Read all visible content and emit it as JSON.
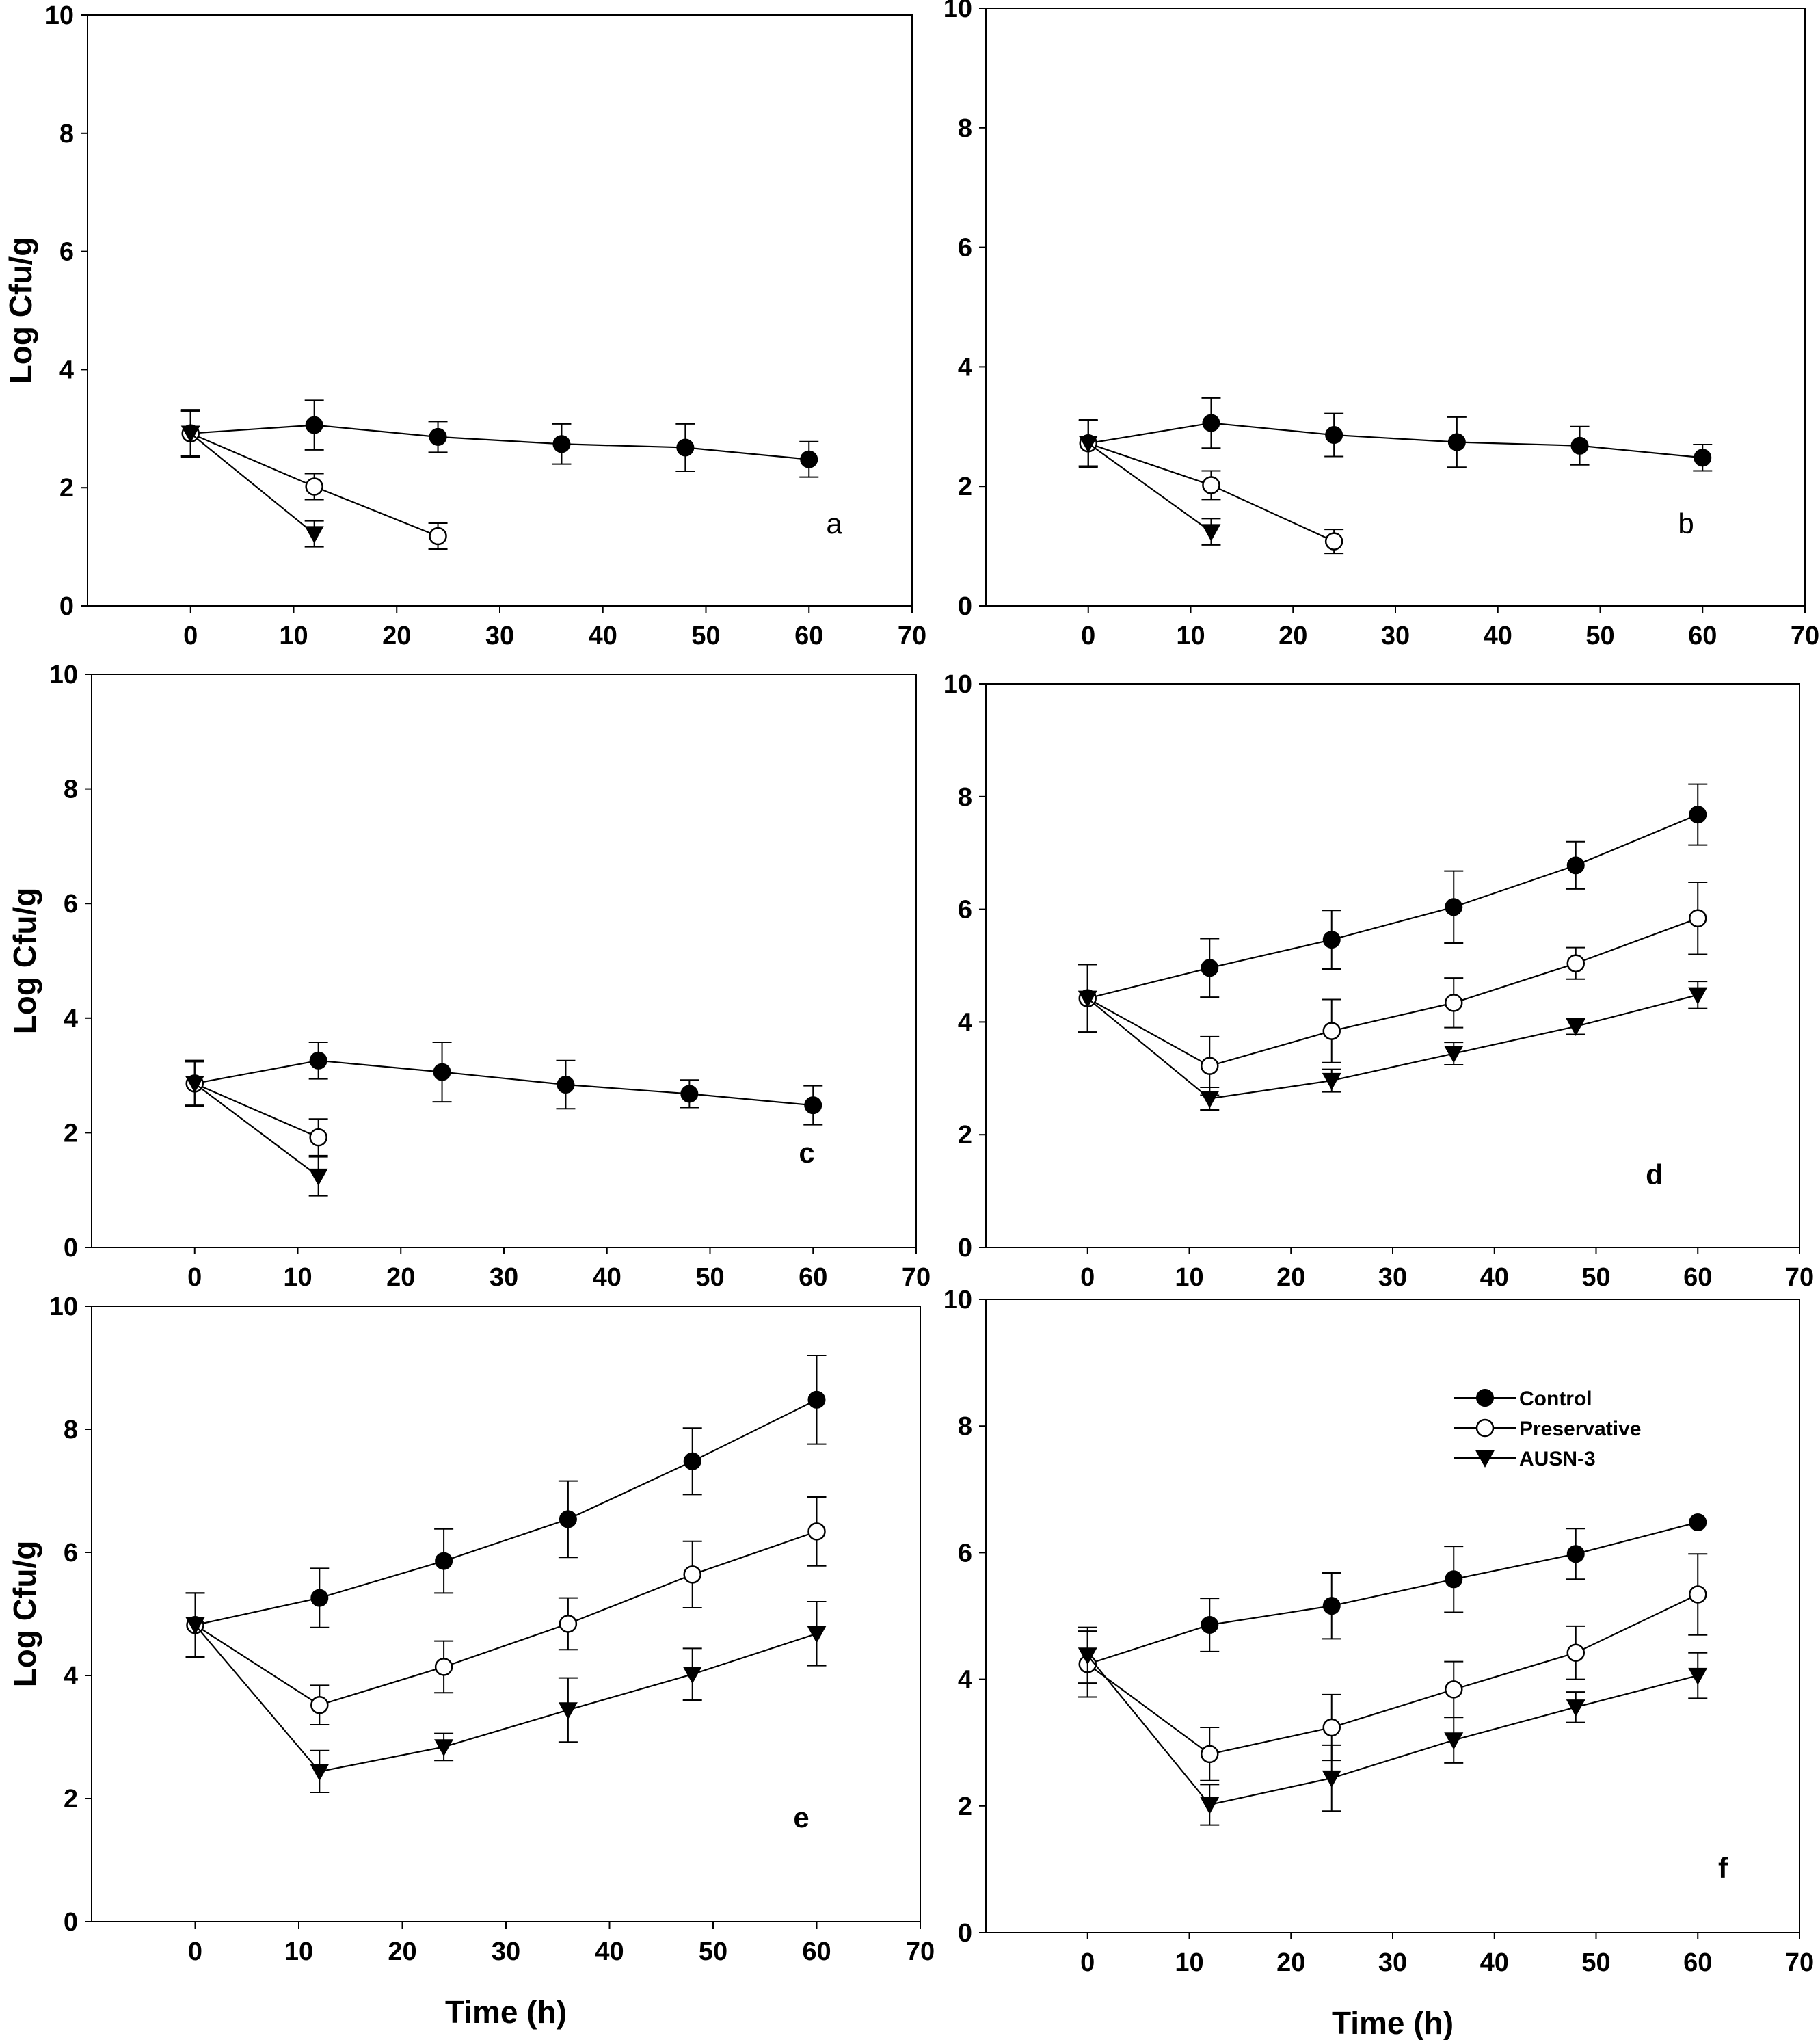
{
  "chart_data": [
    {
      "type": "line",
      "panel_label": "a",
      "ylabel": "Log Cfu/g",
      "xlabel": "",
      "xlim": [
        -10,
        70
      ],
      "ylim": [
        0,
        10
      ],
      "xticks": [
        "0",
        "10",
        "20",
        "30",
        "40",
        "50",
        "60",
        "70"
      ],
      "yticks": [
        "0",
        "2",
        "4",
        "6",
        "8",
        "10"
      ],
      "series": [
        {
          "key": "control",
          "x": [
            0,
            12,
            24,
            36,
            48,
            60
          ],
          "y": [
            2.92,
            3.06,
            2.86,
            2.74,
            2.68,
            2.48
          ],
          "err": [
            0.38,
            0.42,
            0.26,
            0.34,
            0.4,
            0.3
          ]
        },
        {
          "key": "preservative",
          "x": [
            0,
            12,
            24
          ],
          "y": [
            2.92,
            2.02,
            1.18
          ],
          "err": [
            0.38,
            0.22,
            0.22
          ]
        },
        {
          "key": "ausn3",
          "x": [
            0,
            12
          ],
          "y": [
            2.92,
            1.22
          ],
          "err": [
            0.4,
            0.22
          ]
        }
      ]
    },
    {
      "type": "line",
      "panel_label": "b",
      "ylabel": "",
      "xlabel": "",
      "xlim": [
        -10,
        70
      ],
      "ylim": [
        0,
        10
      ],
      "xticks": [
        "0",
        "10",
        "20",
        "30",
        "40",
        "50",
        "60",
        "70"
      ],
      "yticks": [
        "0",
        "2",
        "4",
        "6",
        "8",
        "10"
      ],
      "series": [
        {
          "key": "control",
          "x": [
            0,
            12,
            24,
            36,
            48,
            60
          ],
          "y": [
            2.72,
            3.06,
            2.86,
            2.74,
            2.68,
            2.48
          ],
          "err": [
            0.38,
            0.42,
            0.36,
            0.42,
            0.32,
            0.22
          ]
        },
        {
          "key": "preservative",
          "x": [
            0,
            12,
            24
          ],
          "y": [
            2.72,
            2.02,
            1.08
          ],
          "err": [
            0.38,
            0.24,
            0.2
          ]
        },
        {
          "key": "ausn3",
          "x": [
            0,
            12
          ],
          "y": [
            2.72,
            1.24
          ],
          "err": [
            0.4,
            0.22
          ]
        }
      ]
    },
    {
      "type": "line",
      "panel_label": "c",
      "ylabel": "Log Cfu/g",
      "xlabel": "",
      "xlim": [
        -10,
        70
      ],
      "ylim": [
        0,
        10
      ],
      "xticks": [
        "0",
        "10",
        "20",
        "30",
        "40",
        "50",
        "60",
        "70"
      ],
      "yticks": [
        "0",
        "2",
        "4",
        "6",
        "8",
        "10"
      ],
      "series": [
        {
          "key": "control",
          "x": [
            0,
            12,
            24,
            36,
            48,
            60
          ],
          "y": [
            2.86,
            3.26,
            3.06,
            2.84,
            2.68,
            2.48
          ],
          "err": [
            0.4,
            0.32,
            0.52,
            0.42,
            0.24,
            0.34
          ]
        },
        {
          "key": "preservative",
          "x": [
            0,
            12
          ],
          "y": [
            2.86,
            1.92
          ],
          "err": [
            0.38,
            0.32
          ]
        },
        {
          "key": "ausn3",
          "x": [
            0,
            12
          ],
          "y": [
            2.86,
            1.24
          ],
          "err": [
            0.4,
            0.34
          ]
        }
      ]
    },
    {
      "type": "line",
      "panel_label": "d",
      "ylabel": "",
      "xlabel": "",
      "xlim": [
        -10,
        70
      ],
      "ylim": [
        0,
        10
      ],
      "xticks": [
        "0",
        "10",
        "20",
        "30",
        "40",
        "50",
        "60",
        "70"
      ],
      "yticks": [
        "0",
        "2",
        "4",
        "6",
        "8",
        "10"
      ],
      "series": [
        {
          "key": "control",
          "x": [
            0,
            12,
            24,
            36,
            48,
            60
          ],
          "y": [
            4.42,
            4.96,
            5.46,
            6.04,
            6.78,
            7.68
          ],
          "err": [
            0.6,
            0.52,
            0.52,
            0.64,
            0.42,
            0.54
          ]
        },
        {
          "key": "preservative",
          "x": [
            0,
            12,
            24,
            36,
            48,
            60
          ],
          "y": [
            4.42,
            3.22,
            3.84,
            4.34,
            5.04,
            5.84
          ],
          "err": [
            0.6,
            0.52,
            0.56,
            0.44,
            0.28,
            0.64
          ]
        },
        {
          "key": "ausn3",
          "x": [
            0,
            12,
            24,
            36,
            48,
            60
          ],
          "y": [
            4.42,
            2.64,
            2.96,
            3.44,
            3.92,
            4.48
          ],
          "err": [
            0.6,
            0.2,
            0.2,
            0.2,
            0.14,
            0.24
          ]
        }
      ]
    },
    {
      "type": "line",
      "panel_label": "e",
      "ylabel": "Log Cfu/g",
      "xlabel": "Time (h)",
      "xlim": [
        -10,
        70
      ],
      "ylim": [
        0,
        10
      ],
      "xticks": [
        "0",
        "10",
        "20",
        "30",
        "40",
        "50",
        "60",
        "70"
      ],
      "yticks": [
        "0",
        "2",
        "4",
        "6",
        "8",
        "10"
      ],
      "series": [
        {
          "key": "control",
          "x": [
            0,
            12,
            24,
            36,
            48,
            60
          ],
          "y": [
            4.82,
            5.26,
            5.86,
            6.54,
            7.48,
            8.48
          ],
          "err": [
            0.52,
            0.48,
            0.52,
            0.62,
            0.54,
            0.72
          ]
        },
        {
          "key": "preservative",
          "x": [
            0,
            12,
            24,
            36,
            48,
            60
          ],
          "y": [
            4.82,
            3.52,
            4.14,
            4.84,
            5.64,
            6.34
          ],
          "err": [
            0.52,
            0.32,
            0.42,
            0.42,
            0.54,
            0.56
          ]
        },
        {
          "key": "ausn3",
          "x": [
            0,
            12,
            24,
            36,
            48,
            60
          ],
          "y": [
            4.82,
            2.44,
            2.84,
            3.44,
            4.02,
            4.68
          ],
          "err": [
            0.52,
            0.34,
            0.22,
            0.52,
            0.42,
            0.52
          ]
        }
      ]
    },
    {
      "type": "line",
      "panel_label": "f",
      "ylabel": "",
      "xlabel": "Time (h)",
      "xlim": [
        -10,
        70
      ],
      "ylim": [
        0,
        10
      ],
      "xticks": [
        "0",
        "10",
        "20",
        "30",
        "40",
        "50",
        "60",
        "70"
      ],
      "yticks": [
        "0",
        "2",
        "4",
        "6",
        "8",
        "10"
      ],
      "legend": {
        "placement": "top-right",
        "entries": [
          {
            "key": "control",
            "label": "Control"
          },
          {
            "key": "preservative",
            "label": "Preservative"
          },
          {
            "key": "ausn3",
            "label": "AUSN-3"
          }
        ]
      },
      "series": [
        {
          "key": "control",
          "x": [
            0,
            12,
            24,
            36,
            48,
            60
          ],
          "y": [
            4.24,
            4.86,
            5.16,
            5.58,
            5.98,
            6.48
          ],
          "err": [
            0.52,
            0.42,
            0.52,
            0.52,
            0.4,
            0
          ]
        },
        {
          "key": "preservative",
          "x": [
            0,
            12,
            24,
            36,
            48,
            60
          ],
          "y": [
            4.24,
            2.82,
            3.24,
            3.84,
            4.42,
            5.34
          ],
          "err": [
            0.52,
            0.42,
            0.52,
            0.44,
            0.42,
            0.64
          ]
        },
        {
          "key": "ausn3",
          "x": [
            0,
            12,
            24,
            36,
            48,
            60
          ],
          "y": [
            4.38,
            2.02,
            2.44,
            3.04,
            3.56,
            4.06
          ],
          "err": [
            0.44,
            0.32,
            0.52,
            0.36,
            0.24,
            0.36
          ]
        }
      ]
    }
  ]
}
